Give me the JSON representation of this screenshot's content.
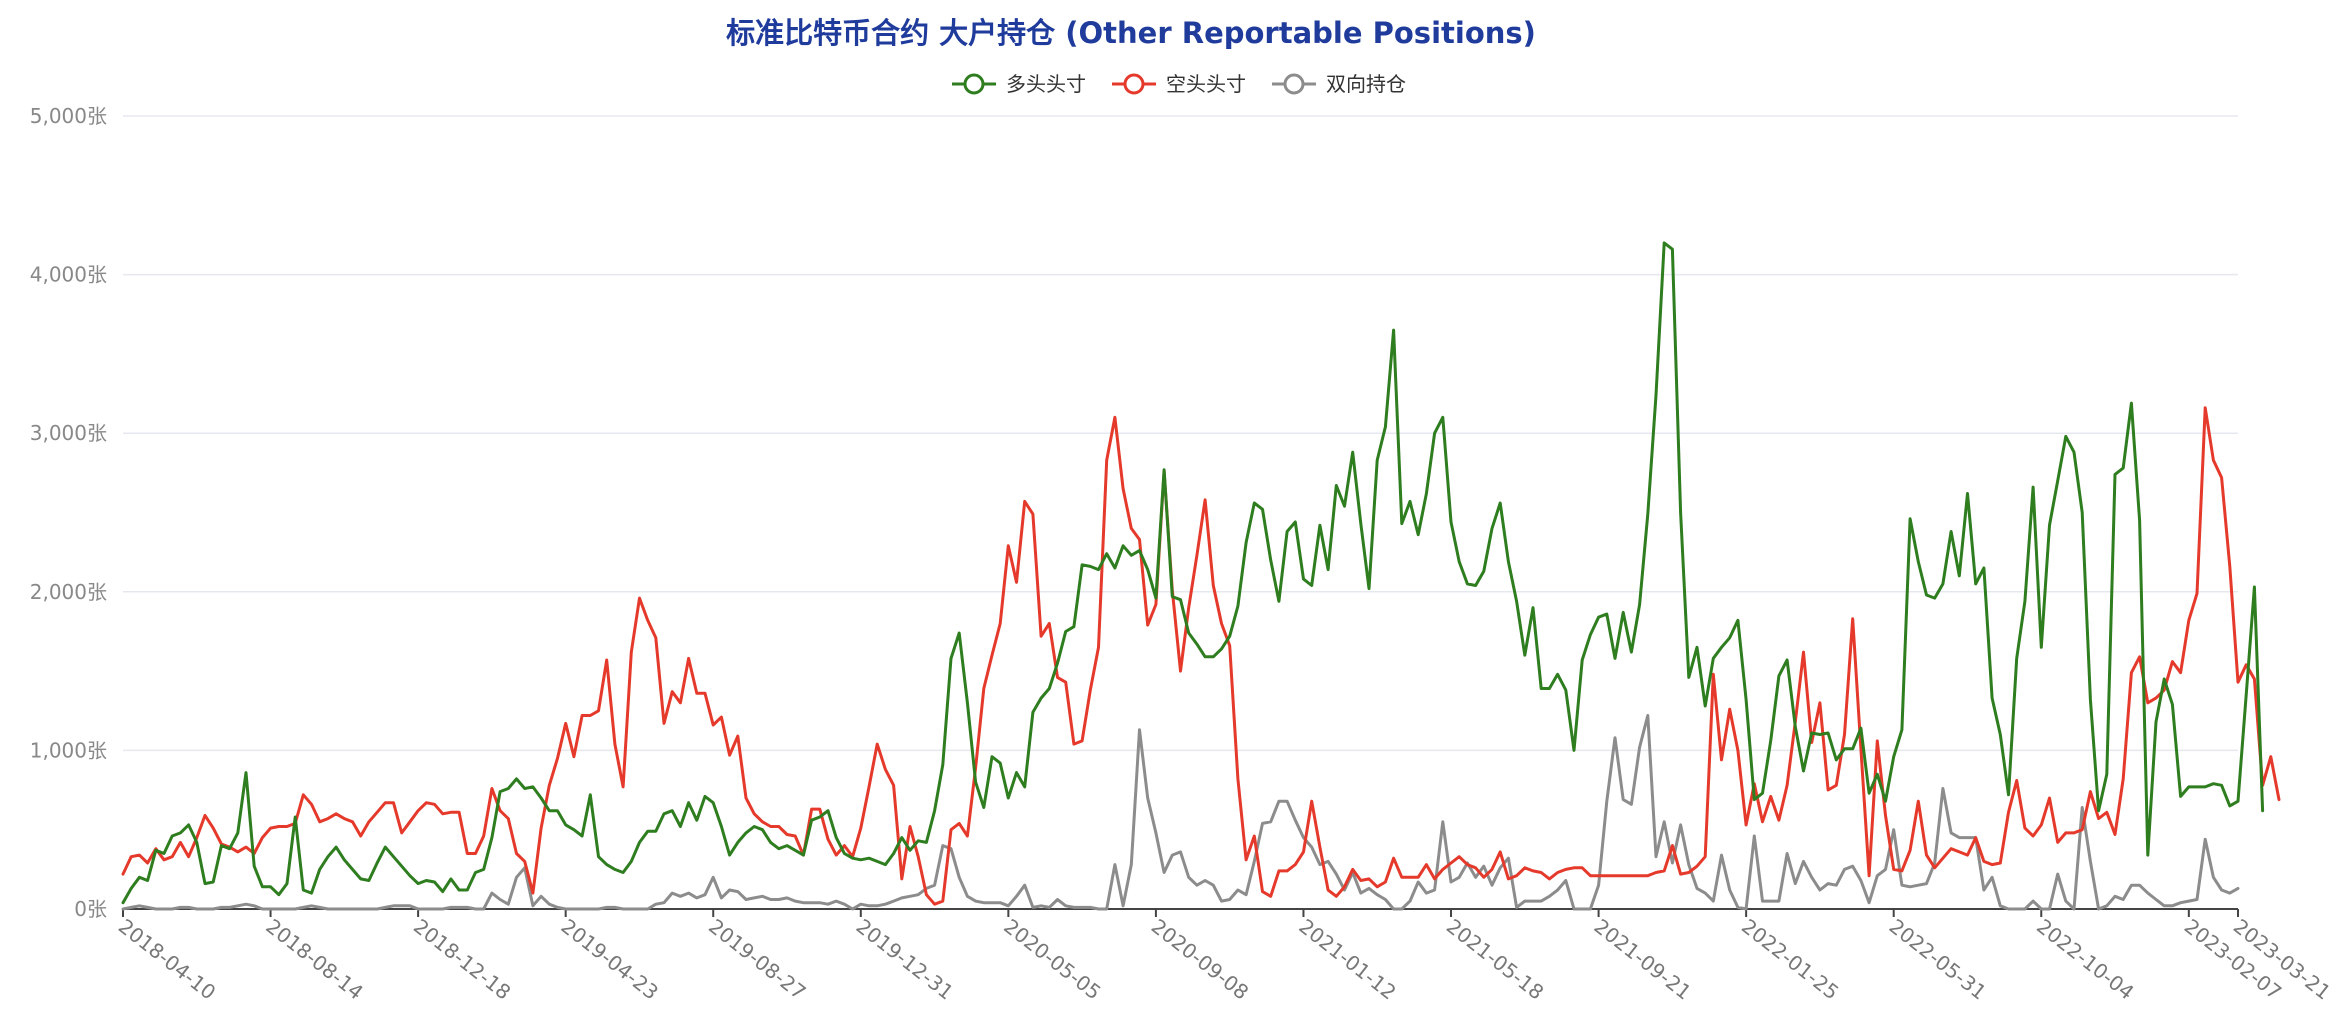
{
  "chart_data": {
    "type": "line",
    "title": "标准比特币合约 大户持仓 (Other Reportable Positions)",
    "y_unit_suffix": "张",
    "y_ticks": [
      0,
      1000,
      2000,
      3000,
      4000,
      5000
    ],
    "y_tick_labels": [
      "0张",
      "1,000张",
      "2,000张",
      "3,000张",
      "4,000张",
      "5,000张"
    ],
    "ylim": [
      0,
      5000
    ],
    "grid": true,
    "legend_position": "top-center",
    "x_tick_labels": [
      "2018-04-10",
      "2018-08-14",
      "2018-12-18",
      "2019-04-23",
      "2019-08-27",
      "2019-12-31",
      "2020-05-05",
      "2020-09-08",
      "2021-01-12",
      "2021-05-18",
      "2021-09-21",
      "2022-01-25",
      "2022-05-31",
      "2022-10-04",
      "2023-02-07",
      "2023-03-21"
    ],
    "x_tick_positions": [
      0,
      18,
      36,
      54,
      72,
      90,
      108,
      126,
      144,
      162,
      180,
      198,
      216,
      234,
      252,
      258
    ],
    "x_count": 259,
    "series": [
      {
        "name": "多头头寸",
        "color": "#2e7d1f",
        "values": [
          40,
          130,
          200,
          180,
          370,
          350,
          460,
          480,
          530,
          420,
          160,
          170,
          400,
          380,
          480,
          860,
          270,
          140,
          140,
          90,
          160,
          580,
          120,
          100,
          250,
          330,
          390,
          310,
          250,
          190,
          180,
          290,
          390,
          330,
          270,
          210,
          160,
          180,
          170,
          110,
          190,
          120,
          120,
          230,
          250,
          450,
          740,
          760,
          820,
          760,
          770,
          700,
          620,
          620,
          530,
          500,
          460,
          720,
          330,
          280,
          250,
          230,
          300,
          420,
          490,
          490,
          600,
          620,
          520,
          670,
          560,
          710,
          670,
          520,
          340,
          420,
          480,
          520,
          500,
          420,
          380,
          400,
          370,
          340,
          560,
          580,
          620,
          450,
          350,
          320,
          310,
          320,
          300,
          280,
          350,
          450,
          370,
          430,
          420,
          620,
          910,
          1580,
          1740,
          1300,
          800,
          640,
          960,
          920,
          700,
          860,
          770,
          1240,
          1330,
          1390,
          1550,
          1750,
          1780,
          2170,
          2160,
          2140,
          2240,
          2150,
          2290,
          2230,
          2260,
          2140,
          1960,
          2770,
          1970,
          1950,
          1740,
          1670,
          1590,
          1590,
          1640,
          1720,
          1910,
          2310,
          2560,
          2520,
          2200,
          1940,
          2380,
          2440,
          2080,
          2040,
          2420,
          2140,
          2670,
          2540,
          2880,
          2430,
          2020,
          2830,
          3040,
          3650,
          2430,
          2570,
          2360,
          2620,
          3000,
          3100,
          2440,
          2190,
          2050,
          2040,
          2130,
          2400,
          2560,
          2190,
          1940,
          1600,
          1900,
          1390,
          1390,
          1480,
          1380,
          1000,
          1570,
          1730,
          1840,
          1860,
          1580,
          1870,
          1620,
          1920,
          2490,
          3240,
          4200,
          4160,
          2500,
          1460,
          1650,
          1280,
          1580,
          1650,
          1710,
          1820,
          1320,
          690,
          730,
          1060,
          1470,
          1570,
          1150,
          870,
          1110,
          1100,
          1110,
          940,
          1010,
          1010,
          1140,
          730,
          850,
          680,
          960,
          1130,
          2460,
          2190,
          1980,
          1960,
          2050,
          2380,
          2100,
          2620,
          2050,
          2150,
          1330,
          1100,
          720,
          1580,
          1940,
          2660,
          1650,
          2420,
          2700,
          2980,
          2880,
          2500,
          1320,
          620,
          850,
          2740,
          2780,
          3190,
          2450,
          340,
          1180,
          1450,
          1290,
          710,
          770,
          770,
          770,
          790,
          780,
          650,
          680,
          1350,
          2030,
          620
        ]
      },
      {
        "name": "空头头寸",
        "color": "#e53a2b",
        "values": [
          220,
          330,
          340,
          290,
          380,
          310,
          330,
          420,
          330,
          450,
          590,
          510,
          410,
          390,
          360,
          390,
          350,
          450,
          510,
          520,
          520,
          540,
          720,
          660,
          550,
          570,
          600,
          570,
          550,
          460,
          550,
          610,
          670,
          670,
          480,
          550,
          620,
          670,
          660,
          600,
          610,
          610,
          350,
          350,
          460,
          760,
          620,
          570,
          350,
          300,
          100,
          510,
          780,
          950,
          1170,
          960,
          1220,
          1220,
          1250,
          1570,
          1040,
          770,
          1620,
          1960,
          1820,
          1710,
          1170,
          1370,
          1300,
          1580,
          1360,
          1360,
          1160,
          1210,
          970,
          1090,
          700,
          600,
          550,
          520,
          520,
          470,
          460,
          340,
          630,
          630,
          440,
          340,
          400,
          330,
          510,
          770,
          1040,
          880,
          780,
          190,
          520,
          330,
          90,
          30,
          50,
          500,
          540,
          460,
          890,
          1390,
          1600,
          1800,
          2290,
          2060,
          2570,
          2490,
          1720,
          1800,
          1460,
          1430,
          1040,
          1060,
          1380,
          1650,
          2830,
          3100,
          2650,
          2400,
          2330,
          1790,
          1920,
          2760,
          2010,
          1500,
          1900,
          2230,
          2580,
          2040,
          1800,
          1660,
          820,
          310,
          460,
          110,
          80,
          240,
          240,
          280,
          360,
          680,
          390,
          120,
          80,
          140,
          250,
          180,
          190,
          140,
          170,
          320,
          200,
          200,
          200,
          280,
          190,
          250,
          290,
          330,
          280,
          260,
          200,
          250,
          360,
          190,
          210,
          260,
          240,
          230,
          190,
          230,
          250,
          260,
          260,
          210,
          210,
          210,
          210,
          210,
          210,
          210,
          210,
          230,
          240,
          400,
          220,
          230,
          270,
          330,
          1480,
          940,
          1260,
          1000,
          530,
          790,
          550,
          710,
          560,
          780,
          1180,
          1620,
          1050,
          1300,
          750,
          780,
          1100,
          1830,
          1010,
          210,
          1060,
          590,
          250,
          240,
          370,
          680,
          340,
          260,
          320,
          380,
          360,
          340,
          450,
          300,
          280,
          290,
          610,
          810,
          510,
          460,
          530,
          700,
          420,
          480,
          480,
          500,
          740,
          570,
          610,
          470,
          820,
          1490,
          1590,
          1300,
          1330,
          1380,
          1560,
          1490,
          1820,
          1990,
          3160,
          2830,
          2720,
          2160,
          1430,
          1540,
          1450,
          780,
          960,
          690
        ]
      },
      {
        "name": "双向持仓",
        "color": "#8c8c8c",
        "values": [
          0,
          10,
          20,
          10,
          0,
          0,
          0,
          10,
          10,
          0,
          0,
          0,
          10,
          10,
          20,
          30,
          20,
          0,
          0,
          0,
          0,
          0,
          10,
          20,
          10,
          0,
          0,
          0,
          0,
          0,
          0,
          0,
          10,
          20,
          20,
          20,
          0,
          0,
          0,
          0,
          10,
          10,
          10,
          0,
          0,
          100,
          60,
          30,
          200,
          260,
          20,
          80,
          30,
          10,
          0,
          0,
          0,
          0,
          0,
          10,
          10,
          0,
          0,
          0,
          0,
          30,
          40,
          100,
          80,
          100,
          70,
          90,
          200,
          70,
          120,
          110,
          60,
          70,
          80,
          60,
          60,
          70,
          50,
          40,
          40,
          40,
          30,
          50,
          30,
          0,
          30,
          20,
          20,
          30,
          50,
          70,
          80,
          90,
          130,
          150,
          400,
          380,
          200,
          80,
          50,
          40,
          40,
          40,
          20,
          80,
          150,
          10,
          20,
          10,
          60,
          20,
          10,
          10,
          10,
          0,
          0,
          280,
          20,
          280,
          1130,
          700,
          480,
          230,
          340,
          360,
          200,
          150,
          180,
          150,
          50,
          60,
          120,
          90,
          300,
          540,
          550,
          680,
          680,
          560,
          450,
          390,
          280,
          300,
          220,
          120,
          230,
          100,
          130,
          90,
          60,
          0,
          0,
          50,
          170,
          100,
          120,
          550,
          170,
          200,
          290,
          200,
          270,
          150,
          260,
          320,
          10,
          50,
          50,
          50,
          80,
          120,
          180,
          0,
          0,
          0,
          150,
          680,
          1080,
          690,
          660,
          1020,
          1220,
          330,
          550,
          290,
          530,
          280,
          130,
          100,
          50,
          340,
          120,
          10,
          0,
          460,
          50,
          50,
          50,
          350,
          160,
          300,
          200,
          120,
          160,
          150,
          250,
          270,
          180,
          40,
          210,
          250,
          500,
          150,
          140,
          150,
          160,
          290,
          760,
          480,
          450,
          450,
          450,
          120,
          200,
          20,
          0,
          0,
          0,
          50,
          0,
          0,
          220,
          50,
          0,
          640,
          300,
          0,
          20,
          80,
          60,
          150,
          150,
          100,
          60,
          20,
          20,
          40,
          50,
          60,
          440,
          200,
          120,
          100,
          130
        ]
      }
    ]
  }
}
